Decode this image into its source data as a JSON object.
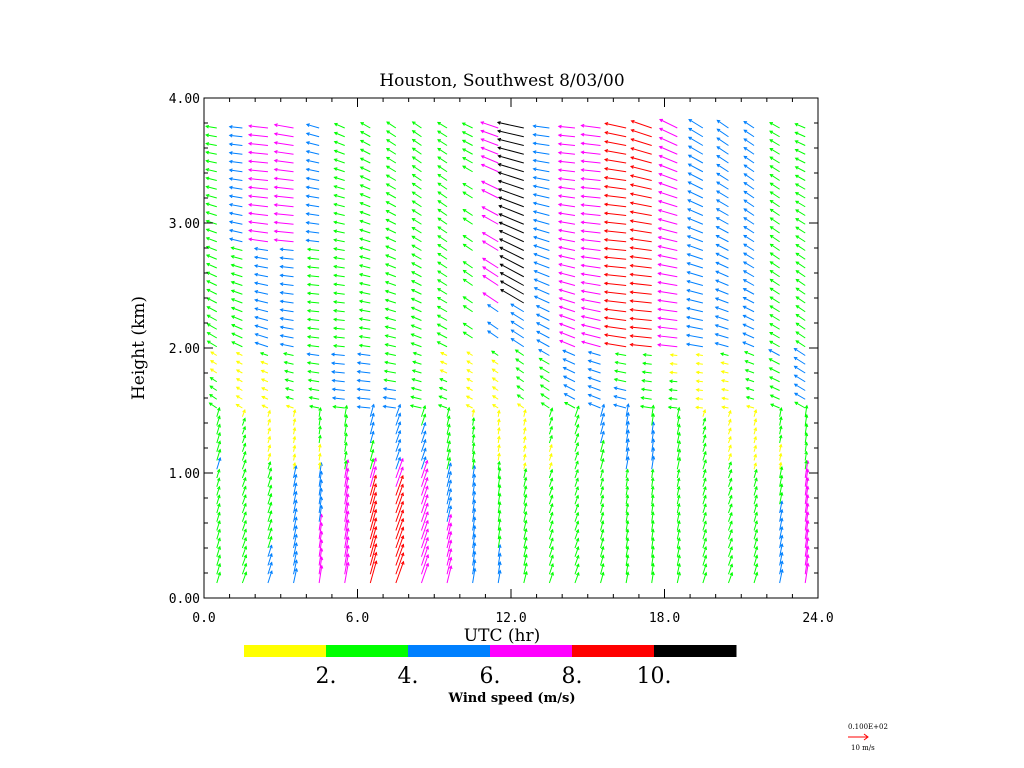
{
  "chart_data": {
    "type": "vector_profile",
    "title": "Houston, Southwest    8/03/00",
    "xlabel": "UTC (hr)",
    "ylabel": "Height (km)",
    "xlim": [
      0,
      24
    ],
    "ylim": [
      0,
      4
    ],
    "x_ticks": [
      "0.0",
      "6.0",
      "12.0",
      "18.0",
      "24.0"
    ],
    "y_ticks": [
      "0.00",
      "1.00",
      "2.00",
      "3.00",
      "4.00"
    ],
    "profile_times_hr": [
      0.5,
      1.5,
      2.5,
      3.5,
      4.5,
      5.5,
      6.5,
      7.5,
      8.5,
      9.5,
      10.5,
      11.5,
      12.5,
      13.5,
      14.5,
      15.5,
      16.5,
      17.5,
      18.5,
      19.5,
      20.5,
      21.5,
      22.5,
      23.5
    ],
    "colorbar": {
      "title": "Wind speed (m/s)",
      "colors": [
        "#ffff00",
        "#00ff00",
        "#0080ff",
        "#ff00ff",
        "#ff0000",
        "#000000"
      ],
      "labels": [
        "2.",
        "4.",
        "6.",
        "8.",
        "10."
      ]
    },
    "reference_vector": {
      "value_label": "0.100E+02",
      "units_label": "10 m/s",
      "color": "#ff0000"
    }
  }
}
